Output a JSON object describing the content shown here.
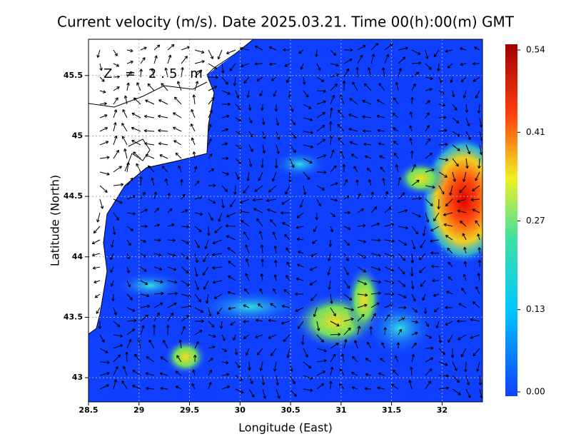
{
  "chart_data": {
    "type": "map",
    "title": "Current velocity (m/s). Date 2025.03.21. Time 00(h):00(m) GMT",
    "annotation": "Z = 2.5 m",
    "x_label": "Longitude (East)",
    "y_label": "Latitude (North)",
    "xlim": [
      28.5,
      32.4
    ],
    "ylim": [
      42.8,
      45.8
    ],
    "xticks": [
      28.5,
      29,
      29.5,
      30,
      30.5,
      31,
      31.5,
      32
    ],
    "yticks": [
      43,
      43.5,
      44,
      44.5,
      45,
      45.5
    ],
    "grid": true,
    "colorbar_lim": [
      0,
      0.54
    ],
    "colorbar_ticks": [
      {
        "value": 0,
        "label": "0.00"
      },
      0.13,
      0.27,
      0.41,
      0.54
    ]
  }
}
